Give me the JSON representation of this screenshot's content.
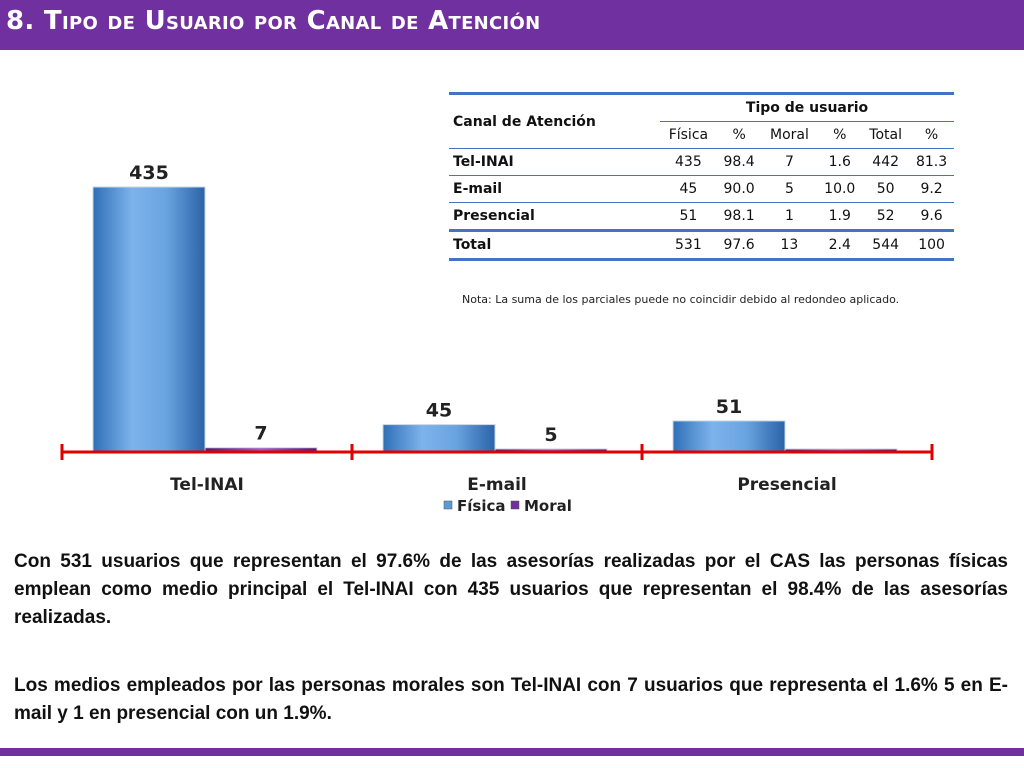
{
  "header": {
    "title": "8. Tipo de Usuario por Canal de Atención",
    "color": "#7030A0"
  },
  "table": {
    "row_header": "Canal de Atención",
    "group_header": "Tipo de usuario",
    "columns": [
      "Física",
      "%",
      "Moral",
      "%",
      "Total",
      "%"
    ],
    "rows": [
      {
        "label": "Tel-INAI",
        "cells": [
          "435",
          "98.4",
          "7",
          "1.6",
          "442",
          "81.3"
        ]
      },
      {
        "label": "E-mail",
        "cells": [
          "45",
          "90.0",
          "5",
          "10.0",
          "50",
          "9.2"
        ]
      },
      {
        "label": "Presencial",
        "cells": [
          "51",
          "98.1",
          "1",
          "1.9",
          "52",
          "9.6"
        ]
      },
      {
        "label": "Total",
        "cells": [
          "531",
          "97.6",
          "13",
          "2.4",
          "544",
          "100"
        ]
      }
    ],
    "note": "Nota: La suma de los parciales puede no coincidir debido al redondeo aplicado."
  },
  "chart_data": {
    "type": "bar",
    "categories": [
      "Tel-INAI",
      "E-mail",
      "Presencial"
    ],
    "series": [
      {
        "name": "Física",
        "values": [
          435,
          45,
          51
        ],
        "labels": [
          "435",
          "45",
          "51"
        ],
        "color": "#5B9BD5"
      },
      {
        "name": "Moral",
        "values": [
          7,
          5,
          1
        ],
        "labels": [
          "7",
          "5",
          ""
        ],
        "color": "#7030A0"
      }
    ],
    "ymax": 435,
    "axis_color": "#E00000",
    "legend_position": "bottom"
  },
  "text": {
    "paragraph1": "Con 531 usuarios que representan el 97.6% de las asesorías realizadas por el CAS las personas físicas emplean como medio principal el Tel-INAI con 435 usuarios que representan el 98.4% de las asesorías realizadas.",
    "paragraph2": "Los medios empleados por las personas morales son Tel-INAI con 7 usuarios que representa el 1.6% 5 en E-mail y 1 en presencial con un 1.9%."
  }
}
